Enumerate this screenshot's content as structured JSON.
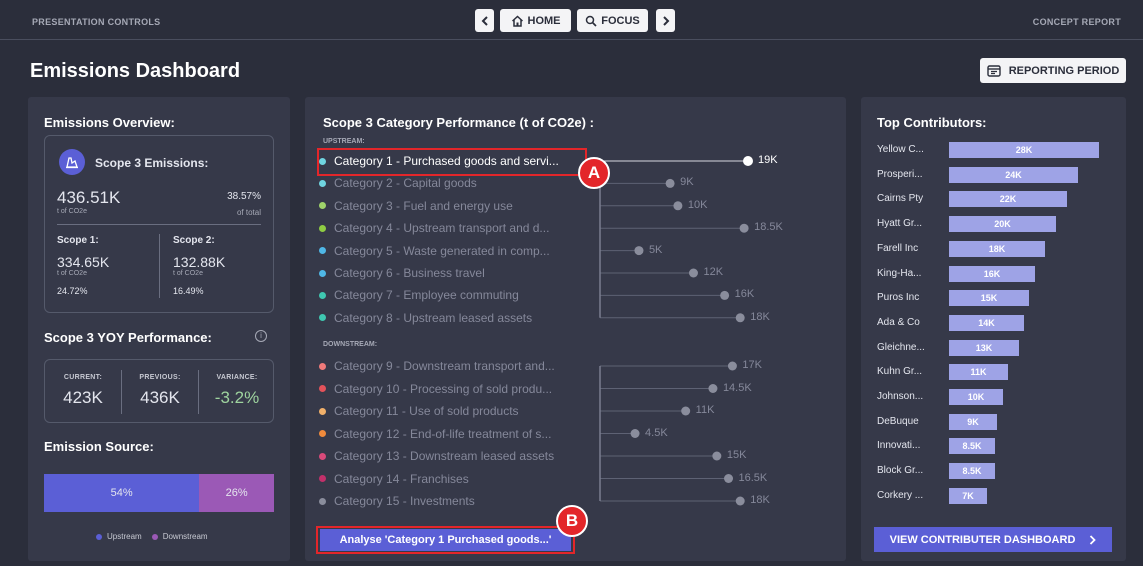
{
  "topbar": {
    "left_label": "PRESENTATION CONTROLS",
    "right_label": "CONCEPT REPORT",
    "home_label": "HOME",
    "focus_label": "FOCUS"
  },
  "header": {
    "title": "Emissions Dashboard",
    "reporting_period_label": "REPORTING PERIOD"
  },
  "overview": {
    "title": "Emissions Overview:",
    "scope3_label": "Scope 3 Emissions:",
    "scope3_value": "436.51K",
    "scope3_unit": "t of CO2e",
    "scope3_pct": "38.57%",
    "scope3_pct_label": "of total",
    "scope1_label": "Scope 1:",
    "scope1_value": "334.65K",
    "scope1_unit": "t of CO2e",
    "scope1_pct": "24.72%",
    "scope2_label": "Scope 2:",
    "scope2_value": "132.88K",
    "scope2_unit": "t of CO2e",
    "scope2_pct": "16.49%"
  },
  "yoy": {
    "title": "Scope 3 YOY Performance:",
    "current_label": "CURRENT:",
    "current_value": "423K",
    "previous_label": "PREVIOUS:",
    "previous_value": "436K",
    "variance_label": "VARIANCE:",
    "variance_value": "-3.2%",
    "variance_color": "#9ed39e"
  },
  "source": {
    "title": "Emission Source:",
    "upstream_pct": "54%",
    "downstream_pct": "26%",
    "upstream_share": 54,
    "downstream_share": 26,
    "upstream_color": "#5b5fd6",
    "downstream_color": "#9b59b6",
    "legend_upstream": "Upstream",
    "legend_downstream": "Downstream"
  },
  "categories": {
    "title": "Scope 3 Category Performance (t of CO2e) :",
    "upstream_label": "UPSTREAM:",
    "downstream_label": "DOWNSTREAM:",
    "upstream": [
      {
        "name": "Category 1 - Purchased goods and servi...",
        "value": 19,
        "label": "19K",
        "color": "#6fd4e0",
        "highlight": true
      },
      {
        "name": "Category 2 - Capital goods",
        "value": 9,
        "label": "9K",
        "color": "#6fd4e0"
      },
      {
        "name": "Category 3 - Fuel and energy use",
        "value": 10,
        "label": "10K",
        "color": "#9fd36a"
      },
      {
        "name": "Category 4 - Upstream transport and d...",
        "value": 18.5,
        "label": "18.5K",
        "color": "#8fcc43"
      },
      {
        "name": "Category 5 - Waste generated in comp...",
        "value": 5,
        "label": "5K",
        "color": "#4fb7e6"
      },
      {
        "name": "Category 6 - Business travel",
        "value": 12,
        "label": "12K",
        "color": "#4fb7e6"
      },
      {
        "name": "Category 7 - Employee commuting",
        "value": 16,
        "label": "16K",
        "color": "#3fc7b0"
      },
      {
        "name": "Category 8 - Upstream leased assets",
        "value": 18,
        "label": "18K",
        "color": "#3fc7b0"
      }
    ],
    "downstream": [
      {
        "name": "Category 9 - Downstream transport and...",
        "value": 17,
        "label": "17K",
        "color": "#f07a7a"
      },
      {
        "name": "Category 10 - Processing of sold produ...",
        "value": 14.5,
        "label": "14.5K",
        "color": "#e3525a"
      },
      {
        "name": "Category 11 - Use of sold products",
        "value": 11,
        "label": "11K",
        "color": "#f1b06a"
      },
      {
        "name": "Category 12 - End-of-life treatment of s...",
        "value": 4.5,
        "label": "4.5K",
        "color": "#f08a3c"
      },
      {
        "name": "Category 13 - Downstream leased assets",
        "value": 15,
        "label": "15K",
        "color": "#d94a7a"
      },
      {
        "name": "Category 14 - Franchises",
        "value": 16.5,
        "label": "16.5K",
        "color": "#c2306a"
      },
      {
        "name": "Category 15 - Investments",
        "value": 18,
        "label": "18K",
        "color": "#8a8d9c"
      }
    ],
    "analyse_label": "Analyse 'Category 1 Purchased goods...'"
  },
  "contributors": {
    "title": "Top Contributors:",
    "items": [
      {
        "name": "Yellow C...",
        "value": 28,
        "label": "28K"
      },
      {
        "name": "Prosperi...",
        "value": 24,
        "label": "24K"
      },
      {
        "name": "Cairns Pty",
        "value": 22,
        "label": "22K"
      },
      {
        "name": "Hyatt Gr...",
        "value": 20,
        "label": "20K"
      },
      {
        "name": "Farell Inc",
        "value": 18,
        "label": "18K"
      },
      {
        "name": "King-Ha...",
        "value": 16,
        "label": "16K"
      },
      {
        "name": "Puros Inc",
        "value": 15,
        "label": "15K"
      },
      {
        "name": "Ada & Co",
        "value": 14,
        "label": "14K"
      },
      {
        "name": "Gleichne...",
        "value": 13,
        "label": "13K"
      },
      {
        "name": "Kuhn Gr...",
        "value": 11,
        "label": "11K"
      },
      {
        "name": "Johnson...",
        "value": 10,
        "label": "10K"
      },
      {
        "name": "DeBuque",
        "value": 9,
        "label": "9K"
      },
      {
        "name": "Innovati...",
        "value": 8.5,
        "label": "8.5K"
      },
      {
        "name": "Block Gr...",
        "value": 8.5,
        "label": "8.5K"
      },
      {
        "name": "Corkery ...",
        "value": 7,
        "label": "7K"
      }
    ],
    "button_label": "VIEW CONTRIBUTER DASHBOARD"
  },
  "annotations": {
    "a_label": "A",
    "b_label": "B",
    "color": "#e3262a"
  },
  "colors": {
    "background": "#2b2e3b",
    "panel": "#363949",
    "accent": "#5b5fd6",
    "contributor_bar": "#9ea3e6"
  }
}
